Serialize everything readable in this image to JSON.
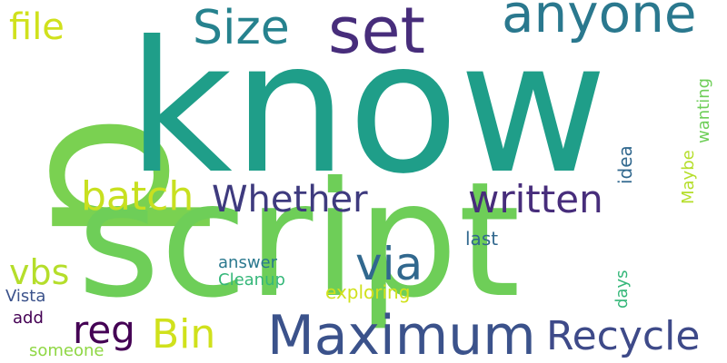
{
  "words": {
    "know": "know",
    "script": "script",
    "p": "p",
    "anyone": "anyone",
    "size": "Size",
    "set": "set",
    "file": "file",
    "batch": "batch",
    "whether": "Whether",
    "written": "written",
    "via": "via",
    "vbs": "vbs",
    "reg": "reg",
    "bin": "Bin",
    "maximum": "Maximum",
    "recycle": "Recycle",
    "answer": "answer",
    "cleanup": "Cleanup",
    "exploring": "exploring",
    "last": "last",
    "vista": "Vista",
    "add": "add",
    "someone": "someone",
    "idea": "idea",
    "days": "days",
    "maybe": "Maybe",
    "wanting": "wanting"
  },
  "colors": {
    "background": "#ffffff",
    "teal_dark": "#1f9e89",
    "green": "#6ece58",
    "lime": "#b5de2b",
    "yellow_green": "#d0e11c",
    "purple": "#440154",
    "indigo": "#472d7b",
    "blue": "#3b528b",
    "slate": "#31688e",
    "teal": "#26828e",
    "sea": "#35b779"
  }
}
